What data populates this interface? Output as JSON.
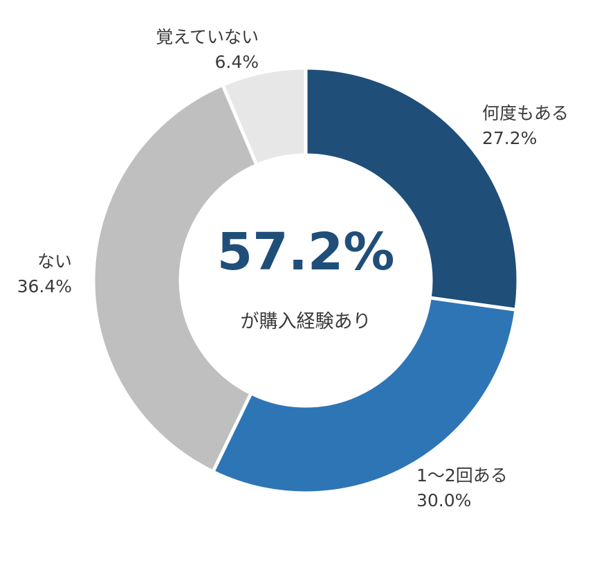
{
  "chart_data": {
    "type": "pie",
    "donut": true,
    "categories": [
      "何度もある",
      "1〜2回ある",
      "ない",
      "覚えていない"
    ],
    "values": [
      27.2,
      30.0,
      36.4,
      6.4
    ],
    "value_labels": [
      "27.2%",
      "30.0%",
      "36.4%",
      "6.4%"
    ],
    "colors": [
      "#1f4e79",
      "#2e75b6",
      "#bfbfbf",
      "#e7e7e7"
    ],
    "start": "12 o'clock",
    "direction": "clockwise",
    "legend": "none",
    "center": {
      "value": "57.2%",
      "caption": "が購入経験あり"
    }
  }
}
